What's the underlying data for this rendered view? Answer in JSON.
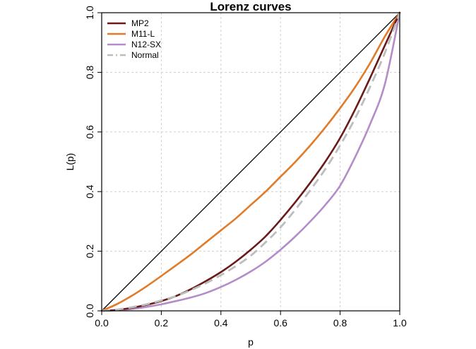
{
  "chart_data": {
    "type": "line",
    "title": "Lorenz curves",
    "xlabel": "p",
    "ylabel": "L(p)",
    "xlim": [
      0,
      1
    ],
    "ylim": [
      0,
      1
    ],
    "x_ticks": [
      "0.0",
      "0.2",
      "0.4",
      "0.6",
      "0.8",
      "1.0"
    ],
    "y_ticks": [
      "0.0",
      "0.2",
      "0.4",
      "0.6",
      "0.8",
      "1.0"
    ],
    "grid": true,
    "legend_position": "top-left",
    "equality_line": {
      "x": [
        0,
        1
      ],
      "y": [
        0,
        1
      ],
      "color": "#000000"
    },
    "series": [
      {
        "name": "MP2",
        "color": "#6b1a1a",
        "style": "solid",
        "x": [
          0,
          0.05,
          0.1,
          0.15,
          0.2,
          0.25,
          0.3,
          0.35,
          0.4,
          0.45,
          0.5,
          0.55,
          0.6,
          0.65,
          0.7,
          0.75,
          0.8,
          0.85,
          0.9,
          0.95,
          1.0
        ],
        "y": [
          0,
          0.003,
          0.01,
          0.02,
          0.033,
          0.05,
          0.073,
          0.1,
          0.13,
          0.165,
          0.205,
          0.25,
          0.305,
          0.365,
          0.43,
          0.5,
          0.58,
          0.675,
          0.78,
          0.89,
          1.0
        ]
      },
      {
        "name": "M11-L",
        "color": "#e07b2a",
        "style": "solid",
        "x": [
          0,
          0.05,
          0.1,
          0.15,
          0.2,
          0.25,
          0.3,
          0.35,
          0.4,
          0.45,
          0.5,
          0.55,
          0.6,
          0.65,
          0.7,
          0.75,
          0.8,
          0.85,
          0.9,
          0.95,
          1.0
        ],
        "y": [
          0,
          0.022,
          0.05,
          0.082,
          0.117,
          0.153,
          0.19,
          0.23,
          0.27,
          0.31,
          0.355,
          0.4,
          0.45,
          0.5,
          0.555,
          0.615,
          0.68,
          0.75,
          0.83,
          0.92,
          1.0
        ]
      },
      {
        "name": "N12-SX",
        "color": "#b48cc8",
        "style": "solid",
        "x": [
          0,
          0.05,
          0.1,
          0.15,
          0.2,
          0.25,
          0.3,
          0.35,
          0.4,
          0.45,
          0.5,
          0.55,
          0.6,
          0.65,
          0.7,
          0.75,
          0.8,
          0.85,
          0.9,
          0.95,
          1.0
        ],
        "y": [
          0,
          0.002,
          0.006,
          0.013,
          0.022,
          0.033,
          0.045,
          0.06,
          0.08,
          0.104,
          0.132,
          0.165,
          0.205,
          0.25,
          0.3,
          0.355,
          0.42,
          0.515,
          0.625,
          0.76,
          1.0
        ]
      },
      {
        "name": "Normal",
        "color": "#bdbdbd",
        "style": "dashed",
        "x": [
          0,
          0.05,
          0.1,
          0.15,
          0.2,
          0.25,
          0.3,
          0.35,
          0.4,
          0.45,
          0.5,
          0.55,
          0.6,
          0.65,
          0.7,
          0.75,
          0.8,
          0.85,
          0.9,
          0.95,
          1.0
        ],
        "y": [
          0,
          0.004,
          0.012,
          0.022,
          0.035,
          0.05,
          0.07,
          0.093,
          0.12,
          0.15,
          0.185,
          0.23,
          0.28,
          0.34,
          0.405,
          0.475,
          0.555,
          0.645,
          0.75,
          0.865,
          1.0
        ]
      }
    ]
  }
}
